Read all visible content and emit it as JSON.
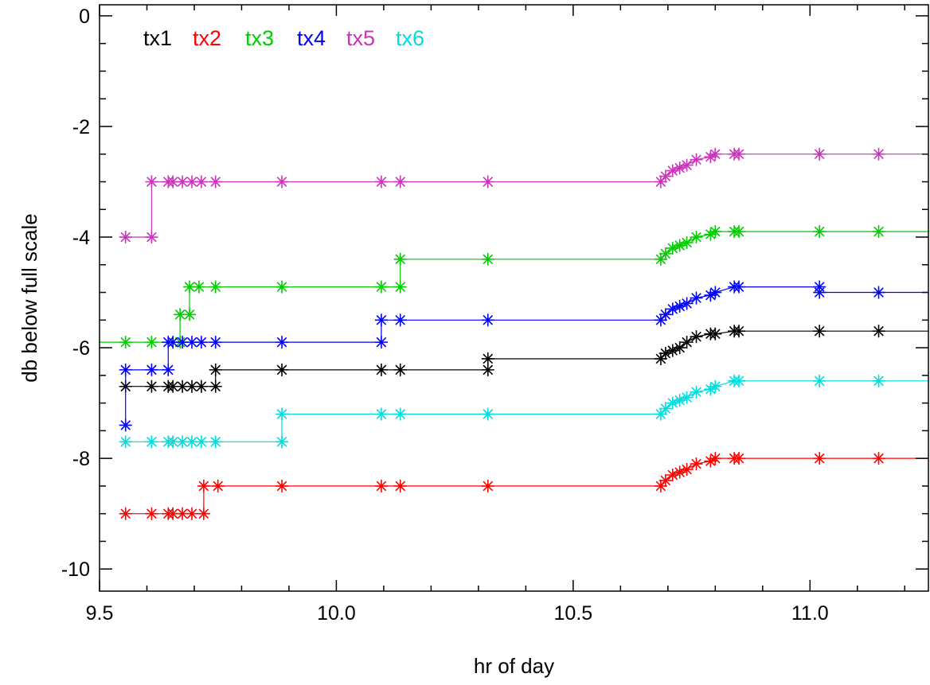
{
  "chart_data": {
    "type": "line",
    "xlabel": "hr of day",
    "ylabel": "db below full scale",
    "xlim": [
      9.5,
      11.25
    ],
    "ylim": [
      -10.4,
      0.2
    ],
    "xticks": [
      {
        "value": 9.5,
        "label": "9.5"
      },
      {
        "value": 10.0,
        "label": "10.0"
      },
      {
        "value": 10.5,
        "label": "10.5"
      },
      {
        "value": 11.0,
        "label": "11.0"
      }
    ],
    "yticks": [
      {
        "value": 0,
        "label": "0"
      },
      {
        "value": -2,
        "label": "-2"
      },
      {
        "value": -4,
        "label": "-4"
      },
      {
        "value": -6,
        "label": "-6"
      },
      {
        "value": -8,
        "label": "-8"
      },
      {
        "value": -10,
        "label": "-10"
      }
    ],
    "grid": false,
    "legend_placement": "top-left",
    "step_style": "post",
    "marker": "asterisk",
    "series": [
      {
        "name": "tx1",
        "color": "#000000",
        "points": [
          [
            9.555,
            -6.7
          ],
          [
            9.61,
            -6.7
          ],
          [
            9.645,
            -6.7
          ],
          [
            9.655,
            -6.7
          ],
          [
            9.675,
            -6.7
          ],
          [
            9.695,
            -6.7
          ],
          [
            9.715,
            -6.7
          ],
          [
            9.745,
            -6.7
          ],
          [
            9.745,
            -6.4
          ],
          [
            9.885,
            -6.4
          ],
          [
            10.095,
            -6.4
          ],
          [
            10.135,
            -6.4
          ],
          [
            10.32,
            -6.4
          ],
          [
            10.32,
            -6.2
          ],
          [
            10.685,
            -6.2
          ],
          [
            10.695,
            -6.1
          ],
          [
            10.71,
            -6.05
          ],
          [
            10.725,
            -6.0
          ],
          [
            10.74,
            -5.9
          ],
          [
            10.76,
            -5.8
          ],
          [
            10.79,
            -5.75
          ],
          [
            10.8,
            -5.75
          ],
          [
            10.84,
            -5.7
          ],
          [
            10.85,
            -5.7
          ],
          [
            11.02,
            -5.7
          ],
          [
            11.145,
            -5.7
          ],
          [
            11.25,
            -5.7
          ]
        ]
      },
      {
        "name": "tx2",
        "color": "#ff0000",
        "points": [
          [
            9.555,
            -9.0
          ],
          [
            9.61,
            -9.0
          ],
          [
            9.645,
            -9.0
          ],
          [
            9.655,
            -9.0
          ],
          [
            9.675,
            -9.0
          ],
          [
            9.695,
            -9.0
          ],
          [
            9.72,
            -9.0
          ],
          [
            9.72,
            -8.5
          ],
          [
            9.75,
            -8.5
          ],
          [
            9.885,
            -8.5
          ],
          [
            10.095,
            -8.5
          ],
          [
            10.135,
            -8.5
          ],
          [
            10.32,
            -8.5
          ],
          [
            10.685,
            -8.5
          ],
          [
            10.695,
            -8.4
          ],
          [
            10.71,
            -8.3
          ],
          [
            10.725,
            -8.25
          ],
          [
            10.74,
            -8.2
          ],
          [
            10.76,
            -8.1
          ],
          [
            10.79,
            -8.05
          ],
          [
            10.8,
            -8.0
          ],
          [
            10.84,
            -8.0
          ],
          [
            10.85,
            -8.0
          ],
          [
            11.02,
            -8.0
          ],
          [
            11.145,
            -8.0
          ],
          [
            11.25,
            -8.0
          ]
        ]
      },
      {
        "name": "tx3",
        "color": "#00cc00",
        "points": [
          [
            9.5,
            -5.9
          ],
          [
            9.555,
            -5.9
          ],
          [
            9.61,
            -5.9
          ],
          [
            9.67,
            -5.9
          ],
          [
            9.67,
            -5.4
          ],
          [
            9.69,
            -5.4
          ],
          [
            9.69,
            -4.9
          ],
          [
            9.71,
            -4.9
          ],
          [
            9.745,
            -4.9
          ],
          [
            9.885,
            -4.9
          ],
          [
            10.095,
            -4.9
          ],
          [
            10.135,
            -4.9
          ],
          [
            10.135,
            -4.4
          ],
          [
            10.32,
            -4.4
          ],
          [
            10.685,
            -4.4
          ],
          [
            10.695,
            -4.3
          ],
          [
            10.71,
            -4.2
          ],
          [
            10.725,
            -4.15
          ],
          [
            10.74,
            -4.1
          ],
          [
            10.76,
            -4.0
          ],
          [
            10.79,
            -3.95
          ],
          [
            10.8,
            -3.9
          ],
          [
            10.84,
            -3.9
          ],
          [
            10.85,
            -3.9
          ],
          [
            11.02,
            -3.9
          ],
          [
            11.145,
            -3.9
          ],
          [
            11.25,
            -3.9
          ]
        ]
      },
      {
        "name": "tx4",
        "color": "#0000ff",
        "points": [
          [
            9.555,
            -7.4
          ],
          [
            9.555,
            -6.4
          ],
          [
            9.61,
            -6.4
          ],
          [
            9.645,
            -6.4
          ],
          [
            9.645,
            -5.9
          ],
          [
            9.655,
            -5.9
          ],
          [
            9.675,
            -5.9
          ],
          [
            9.695,
            -5.9
          ],
          [
            9.715,
            -5.9
          ],
          [
            9.745,
            -5.9
          ],
          [
            9.885,
            -5.9
          ],
          [
            10.095,
            -5.9
          ],
          [
            10.095,
            -5.5
          ],
          [
            10.135,
            -5.5
          ],
          [
            10.32,
            -5.5
          ],
          [
            10.685,
            -5.5
          ],
          [
            10.695,
            -5.4
          ],
          [
            10.71,
            -5.3
          ],
          [
            10.725,
            -5.25
          ],
          [
            10.74,
            -5.2
          ],
          [
            10.76,
            -5.1
          ],
          [
            10.79,
            -5.05
          ],
          [
            10.8,
            -5.0
          ],
          [
            10.84,
            -4.9
          ],
          [
            10.85,
            -4.9
          ],
          [
            11.02,
            -4.9
          ],
          [
            11.02,
            -5.0
          ],
          [
            11.145,
            -5.0
          ],
          [
            11.25,
            -5.0
          ]
        ]
      },
      {
        "name": "tx5",
        "color": "#cc33bb",
        "points": [
          [
            9.555,
            -4.0
          ],
          [
            9.61,
            -4.0
          ],
          [
            9.61,
            -3.0
          ],
          [
            9.645,
            -3.0
          ],
          [
            9.655,
            -3.0
          ],
          [
            9.675,
            -3.0
          ],
          [
            9.695,
            -3.0
          ],
          [
            9.715,
            -3.0
          ],
          [
            9.745,
            -3.0
          ],
          [
            9.885,
            -3.0
          ],
          [
            10.095,
            -3.0
          ],
          [
            10.135,
            -3.0
          ],
          [
            10.32,
            -3.0
          ],
          [
            10.685,
            -3.0
          ],
          [
            10.695,
            -2.9
          ],
          [
            10.71,
            -2.8
          ],
          [
            10.725,
            -2.75
          ],
          [
            10.74,
            -2.7
          ],
          [
            10.76,
            -2.6
          ],
          [
            10.79,
            -2.55
          ],
          [
            10.8,
            -2.5
          ],
          [
            10.84,
            -2.5
          ],
          [
            10.85,
            -2.5
          ],
          [
            11.02,
            -2.5
          ],
          [
            11.145,
            -2.5
          ],
          [
            11.25,
            -2.5
          ]
        ]
      },
      {
        "name": "tx6",
        "color": "#00dddd",
        "points": [
          [
            9.555,
            -7.7
          ],
          [
            9.61,
            -7.7
          ],
          [
            9.645,
            -7.7
          ],
          [
            9.655,
            -7.7
          ],
          [
            9.675,
            -7.7
          ],
          [
            9.695,
            -7.7
          ],
          [
            9.715,
            -7.7
          ],
          [
            9.745,
            -7.7
          ],
          [
            9.885,
            -7.7
          ],
          [
            9.885,
            -7.2
          ],
          [
            10.095,
            -7.2
          ],
          [
            10.135,
            -7.2
          ],
          [
            10.32,
            -7.2
          ],
          [
            10.685,
            -7.2
          ],
          [
            10.695,
            -7.1
          ],
          [
            10.71,
            -7.0
          ],
          [
            10.725,
            -6.95
          ],
          [
            10.74,
            -6.9
          ],
          [
            10.76,
            -6.8
          ],
          [
            10.79,
            -6.75
          ],
          [
            10.8,
            -6.7
          ],
          [
            10.84,
            -6.6
          ],
          [
            10.85,
            -6.6
          ],
          [
            11.02,
            -6.6
          ],
          [
            11.145,
            -6.6
          ],
          [
            11.25,
            -6.6
          ]
        ]
      }
    ]
  }
}
